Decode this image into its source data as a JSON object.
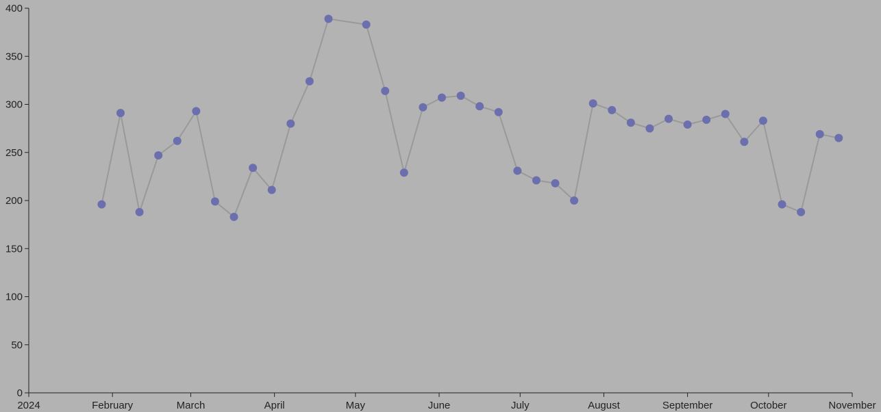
{
  "chart_data": {
    "type": "line",
    "x": [
      "2024-01-28",
      "2024-02-04",
      "2024-02-11",
      "2024-02-18",
      "2024-02-25",
      "2024-03-03",
      "2024-03-10",
      "2024-03-17",
      "2024-03-24",
      "2024-03-31",
      "2024-04-07",
      "2024-04-14",
      "2024-04-21",
      "2024-05-05",
      "2024-05-12",
      "2024-05-19",
      "2024-05-26",
      "2024-06-02",
      "2024-06-09",
      "2024-06-16",
      "2024-06-23",
      "2024-06-30",
      "2024-07-07",
      "2024-07-14",
      "2024-07-21",
      "2024-07-28",
      "2024-08-04",
      "2024-08-11",
      "2024-08-18",
      "2024-08-25",
      "2024-09-01",
      "2024-09-08",
      "2024-09-15",
      "2024-09-22",
      "2024-09-29",
      "2024-10-06",
      "2024-10-13",
      "2024-10-20",
      "2024-10-27"
    ],
    "series": [
      {
        "line_color": "#999999",
        "color": "#6b6fae",
        "values": [
          196,
          291,
          188,
          247,
          262,
          293,
          199,
          183,
          234,
          211,
          280,
          324,
          389,
          383,
          314,
          229,
          297,
          307,
          309,
          298,
          292,
          231,
          221,
          218,
          200,
          301,
          294,
          281,
          275,
          285,
          279,
          284,
          290,
          261,
          283,
          196,
          188,
          269,
          265
        ]
      }
    ],
    "xlim": [
      "2024-01-01",
      "2024-11-01"
    ],
    "xticks": [
      {
        "value": "2024-01-01",
        "label": "2024"
      },
      {
        "value": "2024-02-01",
        "label": "February"
      },
      {
        "value": "2024-03-01",
        "label": "March"
      },
      {
        "value": "2024-04-01",
        "label": "April"
      },
      {
        "value": "2024-05-01",
        "label": "May"
      },
      {
        "value": "2024-06-01",
        "label": "June"
      },
      {
        "value": "2024-07-01",
        "label": "July"
      },
      {
        "value": "2024-08-01",
        "label": "August"
      },
      {
        "value": "2024-09-01",
        "label": "September"
      },
      {
        "value": "2024-10-01",
        "label": "October"
      },
      {
        "value": "2024-11-01",
        "label": "November"
      }
    ],
    "ylim": [
      0,
      400
    ],
    "yticks": [
      0,
      50,
      100,
      150,
      200,
      250,
      300,
      350,
      400
    ]
  }
}
